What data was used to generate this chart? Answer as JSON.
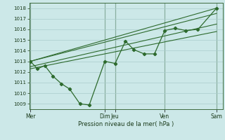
{
  "background_color": "#cce8e8",
  "grid_color": "#aacccc",
  "line_color": "#2d6a2d",
  "title": "Pression niveau de la mer( hPa )",
  "ylim": [
    1008.5,
    1018.5
  ],
  "yticks": [
    1009,
    1010,
    1011,
    1012,
    1013,
    1014,
    1015,
    1016,
    1017,
    1018
  ],
  "day_labels": [
    "Mer",
    "Dim",
    "Jeu",
    "Ven",
    "Sam"
  ],
  "day_positions": [
    0.0,
    3.6,
    4.1,
    6.5,
    9.0
  ],
  "main_x": [
    0.0,
    0.35,
    0.7,
    1.1,
    1.5,
    1.9,
    2.4,
    2.85,
    3.6,
    4.1,
    4.6,
    5.0,
    5.5,
    6.0,
    6.5,
    7.0,
    7.5,
    8.1,
    9.0
  ],
  "main_y": [
    1013.0,
    1012.3,
    1012.6,
    1011.6,
    1010.9,
    1010.4,
    1009.0,
    1008.9,
    1013.0,
    1012.8,
    1014.9,
    1014.1,
    1013.7,
    1013.7,
    1015.9,
    1016.1,
    1015.9,
    1016.0,
    1018.0
  ],
  "trend1_x": [
    0.0,
    9.0
  ],
  "trend1_y": [
    1013.0,
    1018.0
  ],
  "trend2_x": [
    0.0,
    9.0
  ],
  "trend2_y": [
    1013.0,
    1017.5
  ],
  "trend3_x": [
    0.0,
    9.0
  ],
  "trend3_y": [
    1012.5,
    1016.5
  ],
  "trend4_x": [
    0.0,
    9.0
  ],
  "trend4_y": [
    1012.3,
    1015.8
  ],
  "vline_positions": [
    0.0,
    3.6,
    4.1,
    6.5,
    9.0
  ],
  "xlim": [
    -0.05,
    9.3
  ]
}
